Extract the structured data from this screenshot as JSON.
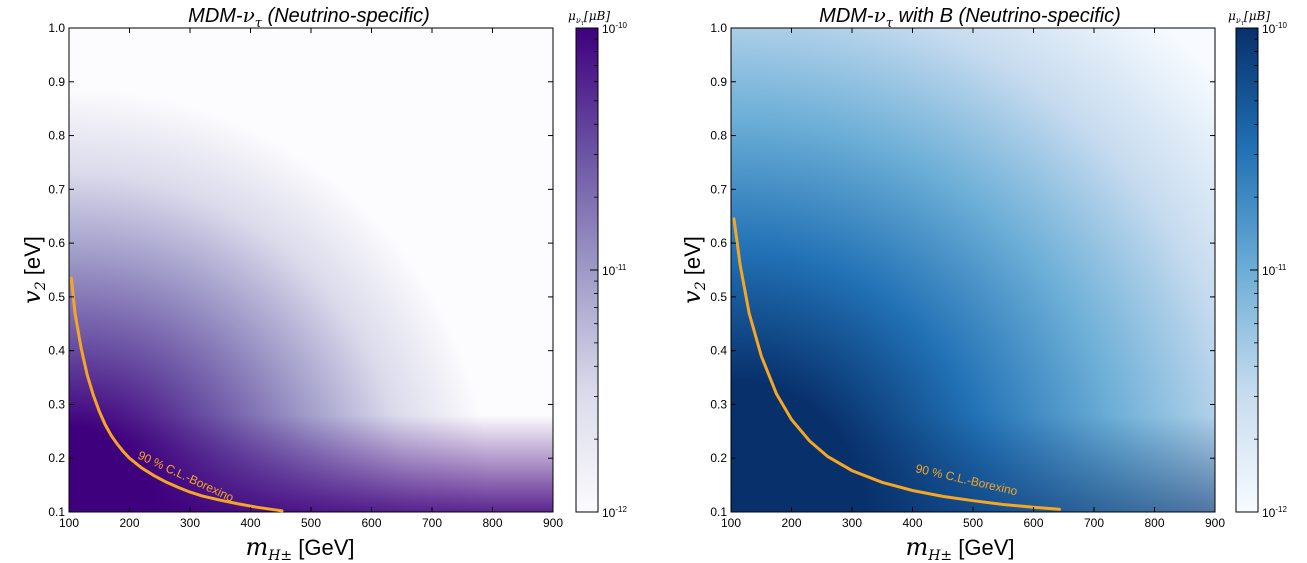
{
  "chart_data": [
    {
      "id": "left",
      "type": "heatmap",
      "title": "MDM-ντ (Neutrino-specific)",
      "title_parts": {
        "prefix": "MDM-",
        "nu": "ν",
        "sub": "τ",
        "suffix": " (Neutrino-specific)"
      },
      "xlabel": {
        "m": "m",
        "sub": "H±",
        "unit": " [GeV]"
      },
      "ylabel": {
        "v": "v",
        "sub": "2",
        "unit": " [eV]"
      },
      "xlim": [
        100,
        900
      ],
      "ylim": [
        0.1,
        1.0
      ],
      "xticks": [
        "100",
        "200",
        "300",
        "400",
        "500",
        "600",
        "700",
        "800",
        "900"
      ],
      "yticks": [
        "0.1",
        "0.2",
        "0.3",
        "0.4",
        "0.5",
        "0.6",
        "0.7",
        "0.8",
        "0.9",
        "1.0"
      ],
      "colormap": "Purples",
      "cmap_colors": [
        "#fcfbfd",
        "#dadaeb",
        "#9e9ac8",
        "#6a51a3",
        "#3f007d"
      ],
      "colorbar": {
        "label": {
          "mu": "μ",
          "nu": "ν",
          "sub": "τ",
          "unit": "[μB]"
        },
        "scale": "log",
        "range": [
          1e-12,
          1e-10
        ],
        "ticks": [
          {
            "base": "10",
            "exp": "-10",
            "value": 1e-10
          },
          {
            "base": "10",
            "exp": "-11",
            "value": 1e-11
          },
          {
            "base": "10",
            "exp": "-12",
            "value": 1e-12
          }
        ]
      },
      "curve": {
        "label": "90 % C.L.-Borexino",
        "color": "#f5a623",
        "x": [
          104,
          110,
          120,
          130,
          140,
          150,
          160,
          170,
          180,
          190,
          200,
          220,
          240,
          260,
          280,
          300,
          320,
          350,
          380,
          410,
          440,
          452
        ],
        "y": [
          0.535,
          0.47,
          0.405,
          0.355,
          0.318,
          0.287,
          0.262,
          0.242,
          0.226,
          0.212,
          0.2,
          0.182,
          0.168,
          0.156,
          0.146,
          0.137,
          0.13,
          0.122,
          0.115,
          0.109,
          0.104,
          0.102
        ]
      }
    },
    {
      "id": "right",
      "type": "heatmap",
      "title": "MDM-ντ with B (Neutrino-specific)",
      "title_parts": {
        "prefix": "MDM-",
        "nu": "ν",
        "sub": "τ",
        "suffix": " with B (Neutrino-specific)"
      },
      "xlabel": {
        "m": "m",
        "sub": "H±",
        "unit": " [GeV]"
      },
      "ylabel": {
        "v": "v",
        "sub": "2",
        "unit": " [eV]"
      },
      "xlim": [
        100,
        900
      ],
      "ylim": [
        0.1,
        1.0
      ],
      "xticks": [
        "100",
        "200",
        "300",
        "400",
        "500",
        "600",
        "700",
        "800",
        "900"
      ],
      "yticks": [
        "0.1",
        "0.2",
        "0.3",
        "0.4",
        "0.5",
        "0.6",
        "0.7",
        "0.8",
        "0.9",
        "1.0"
      ],
      "colormap": "Blues",
      "cmap_colors": [
        "#f7fbff",
        "#c6dbef",
        "#6baed6",
        "#2171b5",
        "#08306b"
      ],
      "colorbar": {
        "label": {
          "mu": "μ",
          "nu": "ν",
          "sub": "τ",
          "unit": "[μB]"
        },
        "scale": "log",
        "range": [
          1e-12,
          1e-10
        ],
        "ticks": [
          {
            "base": "10",
            "exp": "-10",
            "value": 1e-10
          },
          {
            "base": "10",
            "exp": "-11",
            "value": 1e-11
          },
          {
            "base": "10",
            "exp": "-12",
            "value": 1e-12
          }
        ]
      },
      "curve": {
        "label": "90 % C.L.-Borexino",
        "color": "#f5a623",
        "x": [
          105,
          115,
          130,
          150,
          175,
          200,
          230,
          260,
          300,
          350,
          400,
          450,
          500,
          550,
          600,
          643
        ],
        "y": [
          0.645,
          0.56,
          0.47,
          0.39,
          0.32,
          0.272,
          0.232,
          0.203,
          0.177,
          0.155,
          0.14,
          0.129,
          0.121,
          0.114,
          0.109,
          0.105
        ]
      }
    }
  ]
}
